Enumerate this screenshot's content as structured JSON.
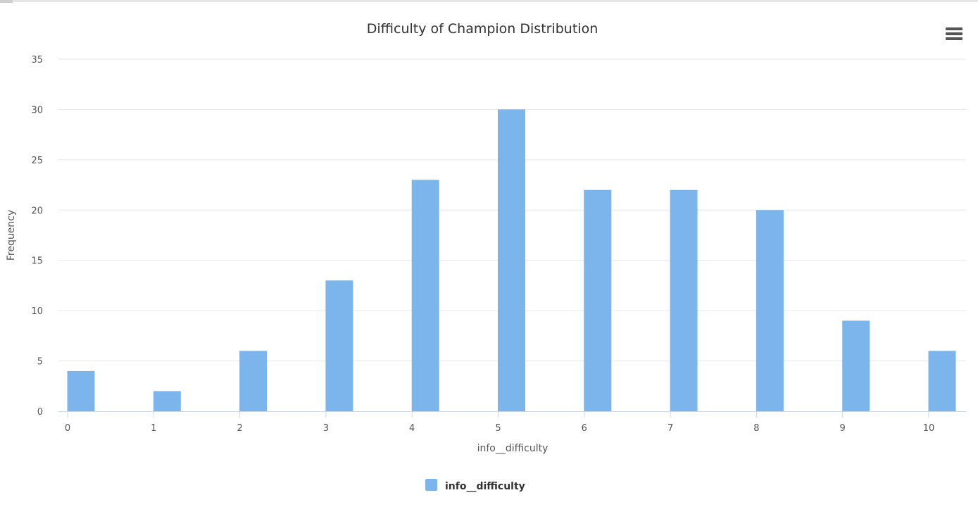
{
  "chart_data": {
    "type": "bar",
    "title": "Difficulty of Champion Distribution",
    "xlabel": "info__difficulty",
    "ylabel": "Frequency",
    "categories": [
      "0",
      "1",
      "2",
      "3",
      "4",
      "5",
      "6",
      "7",
      "8",
      "9",
      "10"
    ],
    "series": [
      {
        "name": "info__difficulty",
        "values": [
          4,
          2,
          6,
          13,
          23,
          30,
          22,
          22,
          20,
          9,
          6
        ],
        "color": "#7cb5ec"
      }
    ],
    "ylim": [
      0,
      35
    ],
    "yticks": [
      0,
      5,
      10,
      15,
      20,
      25,
      30,
      35
    ],
    "grid": true,
    "legend_position": "bottom-center"
  },
  "toolbar": {
    "menu_icon": "hamburger-menu-icon"
  }
}
